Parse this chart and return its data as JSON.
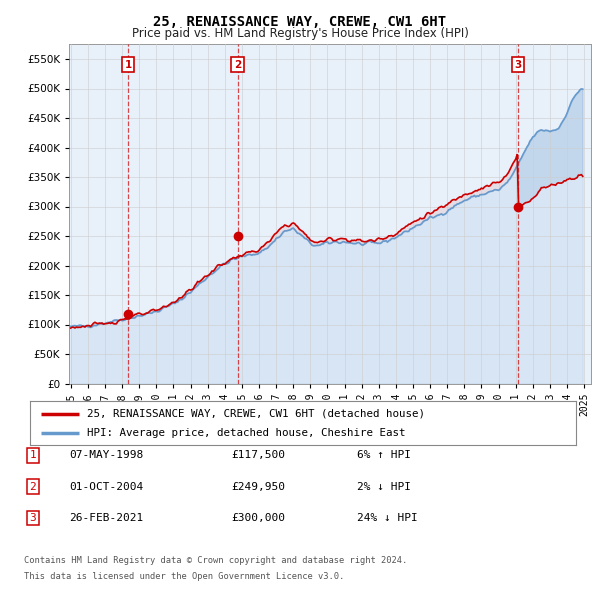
{
  "title": "25, RENAISSANCE WAY, CREWE, CW1 6HT",
  "subtitle": "Price paid vs. HM Land Registry's House Price Index (HPI)",
  "ylabel_ticks": [
    "£0",
    "£50K",
    "£100K",
    "£150K",
    "£200K",
    "£250K",
    "£300K",
    "£350K",
    "£400K",
    "£450K",
    "£500K",
    "£550K"
  ],
  "ytick_values": [
    0,
    50000,
    100000,
    150000,
    200000,
    250000,
    300000,
    350000,
    400000,
    450000,
    500000,
    550000
  ],
  "ylim": [
    0,
    575000
  ],
  "xlim_start": 1994.9,
  "xlim_end": 2025.4,
  "legend_line1": "25, RENAISSANCE WAY, CREWE, CW1 6HT (detached house)",
  "legend_line2": "HPI: Average price, detached house, Cheshire East",
  "sales": [
    {
      "num": 1,
      "date": "07-MAY-1998",
      "price_str": "£117,500",
      "price": 117500,
      "year": 1998.35,
      "hpi_pct": "6% ↑ HPI"
    },
    {
      "num": 2,
      "date": "01-OCT-2004",
      "price_str": "£249,950",
      "price": 249950,
      "year": 2004.75,
      "hpi_pct": "2% ↓ HPI"
    },
    {
      "num": 3,
      "date": "26-FEB-2021",
      "price_str": "£300,000",
      "price": 300000,
      "year": 2021.15,
      "hpi_pct": "24% ↓ HPI"
    }
  ],
  "footnote1": "Contains HM Land Registry data © Crown copyright and database right 2024.",
  "footnote2": "This data is licensed under the Open Government Licence v3.0.",
  "line_color_red": "#cc0000",
  "line_color_blue": "#6699cc",
  "grid_color": "#cccccc",
  "background_color": "#ffffff",
  "plot_bg_color": "#e8f0fa"
}
